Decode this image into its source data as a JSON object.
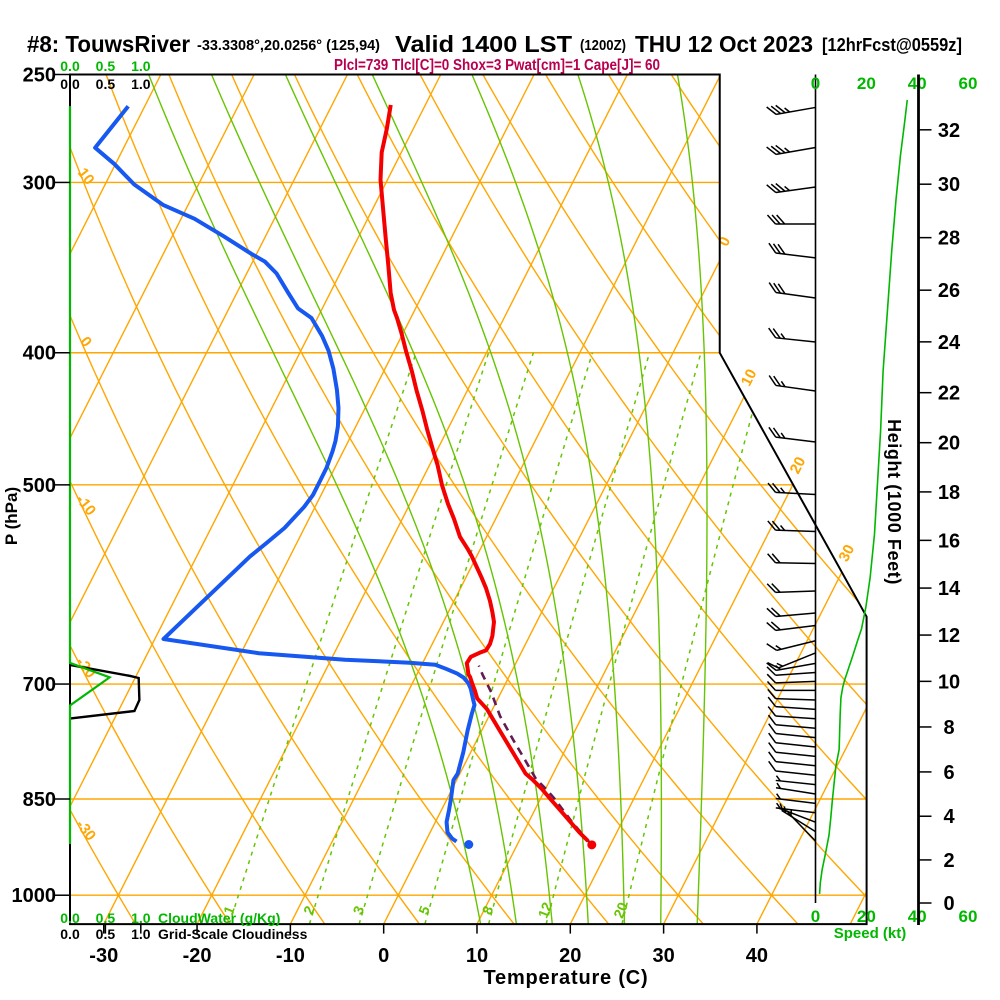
{
  "title": {
    "station": "#8: TouwsRiver",
    "coords": "-33.3308°,20.0256° (125,94)",
    "valid": "Valid 1400 LST",
    "valid_z": "(1200Z)",
    "date": "THU 12 Oct 2023",
    "fcst": "[12hrFcst@0559z]"
  },
  "stats_line": "Plcl=739 Tlcl[C]=0 Shox=3 Pwat[cm]=1 Cape[J]= 60",
  "colors": {
    "background_lines": "#FFA600",
    "moist_lines": "#66C400",
    "ui_green": "#00B800",
    "temperature": "#F40000",
    "dewpoint": "#1758F0",
    "parcel": "#641A52",
    "stats": "#B8004F",
    "frame": "#000000"
  },
  "axes": {
    "pressure": {
      "label": "P (hPa)",
      "ticks": [
        250,
        300,
        400,
        500,
        700,
        850,
        1000
      ]
    },
    "temperature": {
      "label": "Temperature (C)",
      "ticks": [
        -30,
        -20,
        -10,
        0,
        10,
        20,
        30,
        40
      ]
    },
    "height": {
      "label": "Height (1000 Feet)",
      "ticks": [
        0,
        2,
        4,
        6,
        8,
        10,
        12,
        14,
        16,
        18,
        20,
        22,
        24,
        26,
        28,
        30,
        32
      ]
    },
    "speed": {
      "label": "Speed (kt)",
      "ticks": [
        0,
        20,
        40,
        60
      ]
    },
    "cloudwater": {
      "label": "CloudWater (g/Kg)",
      "ticks": [
        "0.0",
        "0.5",
        "1.0"
      ]
    },
    "cloudiness": {
      "label": "Grid-Scale Cloudiness",
      "ticks": [
        "0.0",
        "0.5",
        "1.0"
      ]
    }
  },
  "chart_data": {
    "type": "skewt-log-p-sounding",
    "pressure_range_hpa": [
      250,
      1050
    ],
    "isobars": [
      300,
      400,
      500,
      700,
      850,
      1000
    ],
    "isotherms_c": {
      "start": -100,
      "end": 50,
      "step": 10,
      "labeled": [
        0,
        10,
        20,
        30
      ]
    },
    "dry_adiabats_c": {
      "start": -30,
      "end": 110,
      "step": 10,
      "labeled": [
        10,
        0,
        -10,
        -20,
        -30
      ]
    },
    "moist_adiabats_c": [
      8,
      12,
      16,
      20,
      24,
      28,
      32
    ],
    "mixing_ratio_g_kg": [
      1,
      2,
      3,
      5,
      8,
      12,
      20
    ],
    "temperature_profile": [
      [
        263.2,
        -43.71
      ],
      [
        274.1,
        -42.83
      ],
      [
        285.2,
        -42.1
      ],
      [
        298.6,
        -40.75
      ],
      [
        312.7,
        -39.01
      ],
      [
        329.6,
        -37.02
      ],
      [
        345.2,
        -35.25
      ],
      [
        361.5,
        -33.52
      ],
      [
        372.1,
        -32.23
      ],
      [
        377.2,
        -31.47
      ],
      [
        386.9,
        -30.18
      ],
      [
        398.8,
        -28.72
      ],
      [
        413.2,
        -26.93
      ],
      [
        426.0,
        -25.48
      ],
      [
        441.4,
        -23.69
      ],
      [
        455.0,
        -22.23
      ],
      [
        471.4,
        -20.45
      ],
      [
        483.5,
        -19.15
      ],
      [
        500.2,
        -17.58
      ],
      [
        516.4,
        -15.91
      ],
      [
        529.7,
        -14.45
      ],
      [
        546.0,
        -12.83
      ],
      [
        557.0,
        -11.38
      ],
      [
        563.8,
        -10.56
      ],
      [
        573.8,
        -9.48
      ],
      [
        584.0,
        -8.4
      ],
      [
        595.2,
        -7.28
      ],
      [
        608.2,
        -6.16
      ],
      [
        619.8,
        -5.29
      ],
      [
        630.3,
        -4.58
      ],
      [
        645.4,
        -3.99
      ],
      [
        654.2,
        -3.81
      ],
      [
        661.3,
        -3.89
      ],
      [
        664.0,
        -4.45
      ],
      [
        668.5,
        -5.17
      ],
      [
        675.8,
        -5.25
      ],
      [
        681.3,
        -4.91
      ],
      [
        688.7,
        -4.47
      ],
      [
        691.5,
        -4.17
      ],
      [
        699.9,
        -3.53
      ],
      [
        707.5,
        -2.92
      ],
      [
        717.2,
        -2.23
      ],
      [
        730.2,
        -0.61
      ],
      [
        757.3,
        1.94
      ],
      [
        785.3,
        4.49
      ],
      [
        814.3,
        7.04
      ],
      [
        823.2,
        8.18
      ],
      [
        835.8,
        9.63
      ],
      [
        848.6,
        10.93
      ],
      [
        865.9,
        12.7
      ],
      [
        883.7,
        14.48
      ],
      [
        899.5,
        16.01
      ],
      [
        912.5,
        17.39
      ]
    ],
    "dewpoint_profile": [
      [
        263.8,
        -71.77
      ],
      [
        282.9,
        -73.07
      ],
      [
        290.9,
        -70.09
      ],
      [
        301.0,
        -66.9
      ],
      [
        311.7,
        -62.64
      ],
      [
        319.0,
        -58.55
      ],
      [
        328.6,
        -54.47
      ],
      [
        338.4,
        -50.59
      ],
      [
        342.9,
        -48.7
      ],
      [
        349.8,
        -46.81
      ],
      [
        361.5,
        -44.5
      ],
      [
        371.1,
        -42.61
      ],
      [
        377.2,
        -40.64
      ],
      [
        388.8,
        -38.53
      ],
      [
        398.8,
        -37.01
      ],
      [
        411.1,
        -35.52
      ],
      [
        426.0,
        -34.0
      ],
      [
        439.1,
        -32.86
      ],
      [
        452.7,
        -31.94
      ],
      [
        464.3,
        -31.39
      ],
      [
        472.6,
        -31.14
      ],
      [
        486.0,
        -30.89
      ],
      [
        495.9,
        -30.88
      ],
      [
        508.6,
        -30.87
      ],
      [
        519.1,
        -31.18
      ],
      [
        537.8,
        -32.13
      ],
      [
        551.6,
        -33.24
      ],
      [
        564.3,
        -34.28
      ],
      [
        648.7,
        -39.07
      ],
      [
        664.5,
        -28.07
      ],
      [
        671.8,
        -18.5
      ],
      [
        675.2,
        -11.42
      ],
      [
        677.6,
        -8.54
      ],
      [
        682.2,
        -7.18
      ],
      [
        687.7,
        -5.72
      ],
      [
        692.4,
        -4.82
      ],
      [
        699.0,
        -4.0
      ],
      [
        705.6,
        -3.44
      ],
      [
        719.1,
        -2.57
      ],
      [
        725.2,
        -2.16
      ],
      [
        735.6,
        -1.98
      ],
      [
        757.3,
        -1.51
      ],
      [
        785.3,
        -0.8
      ],
      [
        814.3,
        -0.24
      ],
      [
        823.2,
        -0.34
      ],
      [
        848.6,
        0.38
      ],
      [
        865.9,
        0.81
      ],
      [
        883.7,
        1.2
      ],
      [
        899.5,
        1.87
      ],
      [
        908.6,
        2.68
      ],
      [
        913.3,
        3.32
      ]
    ],
    "parcel_path": [
      [
        915.6,
        17.71
      ],
      [
        883.7,
        14.64
      ],
      [
        865.9,
        13.02
      ],
      [
        848.6,
        11.41
      ],
      [
        832.9,
        9.74
      ],
      [
        821.8,
        8.45
      ],
      [
        797.2,
        6.36
      ],
      [
        768.1,
        3.78
      ],
      [
        738.8,
        1.17
      ],
      [
        709.5,
        -1.08
      ],
      [
        689.0,
        -2.94
      ],
      [
        678.5,
        -3.84
      ]
    ],
    "surface_temp_point": [
      918.4,
      18.0
    ],
    "surface_dewpoint_point": [
      917.9,
      4.8
    ],
    "cloud_water_profile": [
      [
        263.7,
        0.0
      ],
      [
        675.5,
        0.0
      ],
      [
        692.1,
        0.56
      ],
      [
        725.8,
        0.0
      ],
      [
        917.1,
        0.0
      ]
    ],
    "cloudiness_profile": [
      [
        677.8,
        0.0
      ],
      [
        690.5,
        0.85
      ],
      [
        692.9,
        0.97
      ],
      [
        719.1,
        0.98
      ],
      [
        732.6,
        0.91
      ],
      [
        741.9,
        0.01
      ]
    ],
    "wind_speed_profile": [
      [
        261.0,
        36.1
      ],
      [
        270.7,
        35.1
      ],
      [
        286.9,
        33.4
      ],
      [
        308.5,
        31.7
      ],
      [
        336.6,
        30.0
      ],
      [
        372.6,
        28.3
      ],
      [
        412.5,
        26.6
      ],
      [
        456.7,
        25.6
      ],
      [
        505.6,
        24.2
      ],
      [
        543.6,
        23.2
      ],
      [
        584.6,
        21.5
      ],
      [
        615.0,
        19.8
      ],
      [
        637.7,
        18.1
      ],
      [
        651.8,
        16.4
      ],
      [
        666.1,
        14.8
      ],
      [
        680.8,
        13.1
      ],
      [
        695.8,
        11.4
      ],
      [
        704.0,
        10.7
      ],
      [
        716.3,
        10.0
      ],
      [
        737.6,
        9.7
      ],
      [
        781.7,
        9.3
      ],
      [
        804.7,
        8.0
      ],
      [
        828.5,
        7.3
      ],
      [
        852.9,
        6.6
      ],
      [
        878.0,
        6.0
      ],
      [
        903.9,
        5.3
      ],
      [
        930.5,
        4.0
      ],
      [
        958.0,
        2.6
      ],
      [
        979.1,
        1.9
      ],
      [
        997.9,
        1.6
      ]
    ],
    "wind_barbs": [
      [
        264.3,
        36,
        260
      ],
      [
        282.8,
        34.9,
        260
      ],
      [
        302.3,
        33.2,
        262
      ],
      [
        321.8,
        31.6,
        270
      ],
      [
        340.8,
        30,
        277
      ],
      [
        364.7,
        28.6,
        278
      ],
      [
        392.8,
        27.2,
        276
      ],
      [
        426.7,
        26.2,
        278
      ],
      [
        465.1,
        25.3,
        277
      ],
      [
        508.2,
        24.1,
        273
      ],
      [
        541.0,
        23.3,
        272
      ],
      [
        571.0,
        22,
        271
      ],
      [
        598.2,
        20.7,
        268
      ],
      [
        620.8,
        19.4,
        265
      ],
      [
        634.1,
        18.4,
        263
      ],
      [
        650.6,
        16.5,
        256
      ],
      [
        664.2,
        15,
        248
      ],
      [
        676.0,
        13.6,
        260
      ],
      [
        686.4,
        12.4,
        266
      ],
      [
        696.9,
        11.3,
        268
      ],
      [
        707.5,
        10.5,
        270
      ],
      [
        719.1,
        10,
        272
      ],
      [
        730.6,
        9.8,
        274
      ],
      [
        742.3,
        9.7,
        274
      ],
      [
        754.2,
        9.6,
        275
      ],
      [
        766.3,
        9.5,
        276
      ],
      [
        778.5,
        9.4,
        276
      ],
      [
        791.0,
        8.5,
        276
      ],
      [
        803.6,
        8,
        276
      ],
      [
        816.5,
        7.6,
        276
      ],
      [
        829.6,
        7.3,
        276
      ],
      [
        842.9,
        6.9,
        279
      ],
      [
        856.3,
        6.6,
        277
      ],
      [
        870.0,
        6.1,
        277
      ],
      [
        884.0,
        5.5,
        291
      ],
      [
        898.1,
        4.3,
        302
      ],
      [
        912.5,
        3,
        316
      ]
    ]
  }
}
